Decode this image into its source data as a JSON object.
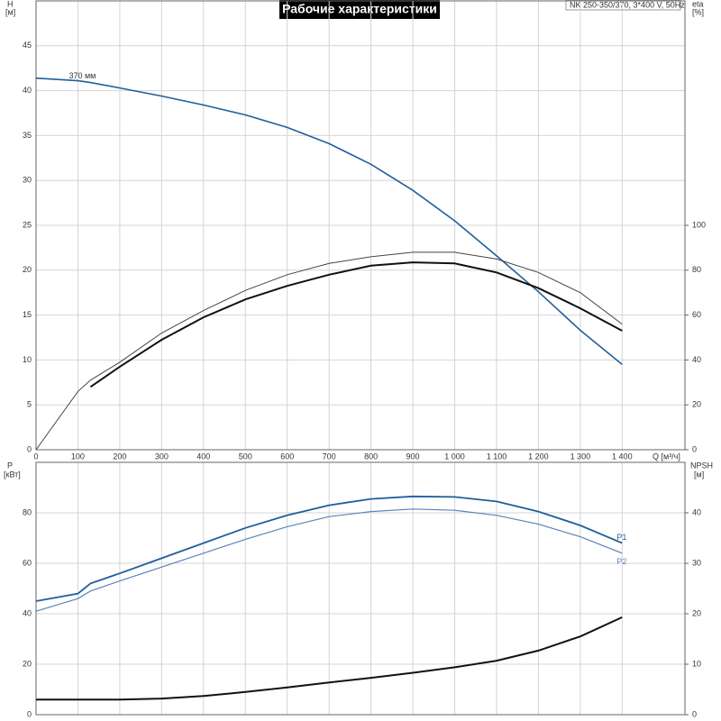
{
  "chart_data": [
    {
      "type": "line",
      "title": "Рабочие характеристики",
      "subtitle": "NK 250-350/370, 3*400 V, 50Hz",
      "ylabel": "H",
      "yunit": "[м]",
      "y2label": "eta",
      "y2unit": "[%]",
      "xlabel": "Q [м³/ч]",
      "x": [
        0,
        100,
        130,
        200,
        300,
        400,
        500,
        600,
        700,
        800,
        900,
        1000,
        1100,
        1200,
        1300,
        1400
      ],
      "xlim": [
        0,
        1550
      ],
      "xticks": [
        0,
        100,
        200,
        300,
        400,
        500,
        600,
        700,
        800,
        900,
        {
          "value": 1000,
          "label": "1 000"
        },
        {
          "value": 1100,
          "label": "1 100"
        },
        {
          "value": 1200,
          "label": "1 200"
        },
        {
          "value": 1300,
          "label": "1 300"
        },
        {
          "value": 1400,
          "label": "1 400"
        }
      ],
      "ylim": [
        0,
        50
      ],
      "yticks": [
        0,
        5,
        10,
        15,
        20,
        25,
        30,
        35,
        40,
        45
      ],
      "y2lim": [
        0,
        200
      ],
      "y2ticks": [
        0,
        20,
        40,
        60,
        80,
        100
      ],
      "grid": true,
      "series": [
        {
          "name": "370 мм",
          "color": "#1f5f9c",
          "line_width": 1.6,
          "values": [
            41.4,
            41.1,
            40.9,
            40.3,
            39.4,
            38.4,
            37.3,
            35.9,
            34.1,
            31.8,
            28.9,
            25.5,
            21.6,
            17.6,
            13.3,
            9.5
          ]
        },
        {
          "color": "#444444",
          "line_width": 1,
          "axis": "y2",
          "values": [
            0,
            26,
            31,
            39,
            52,
            62,
            71,
            78,
            83,
            86,
            88,
            88,
            85,
            79,
            70,
            56
          ]
        },
        {
          "color": "#111111",
          "line_width": 2,
          "axis": "y2",
          "values": [
            null,
            null,
            28,
            37,
            49,
            59,
            67,
            73,
            78,
            82,
            83.5,
            83,
            79,
            72,
            63,
            53
          ]
        }
      ]
    },
    {
      "type": "line",
      "ylabel": "P",
      "yunit": "[кВт]",
      "y2label": "NPSH",
      "y2unit": "[м]",
      "x": [
        0,
        100,
        130,
        200,
        300,
        400,
        500,
        600,
        700,
        800,
        900,
        1000,
        1100,
        1200,
        1300,
        1400
      ],
      "xlim": [
        0,
        1550
      ],
      "xticks": [
        0,
        100,
        200,
        300,
        400,
        500,
        600,
        700,
        800,
        900,
        1000,
        1100,
        1200,
        1300,
        1400
      ],
      "ylim": [
        0,
        100
      ],
      "yticks": [
        0,
        20,
        40,
        60,
        80
      ],
      "y2lim": [
        0,
        50
      ],
      "y2ticks": [
        0,
        10,
        20,
        30,
        40
      ],
      "grid": true,
      "series": [
        {
          "name": "P1",
          "color": "#1f5f9c",
          "line_width": 1.8,
          "values": [
            45,
            48,
            52,
            56,
            62,
            68,
            74,
            79,
            83,
            85.5,
            86.5,
            86.3,
            84.5,
            80.5,
            75,
            68
          ]
        },
        {
          "name": "P2",
          "color": "#5a84b8",
          "line_width": 1.2,
          "values": [
            41,
            46,
            49,
            53,
            58.5,
            64,
            69.5,
            74.5,
            78.5,
            80.5,
            81.5,
            81,
            79,
            75.5,
            70.5,
            64
          ]
        },
        {
          "color": "#111111",
          "line_width": 2,
          "axis": "y2",
          "values": [
            3,
            3,
            3,
            3,
            3.2,
            3.7,
            4.5,
            5.4,
            6.4,
            7.3,
            8.3,
            9.4,
            10.7,
            12.7,
            15.5,
            19.3
          ]
        }
      ]
    }
  ]
}
